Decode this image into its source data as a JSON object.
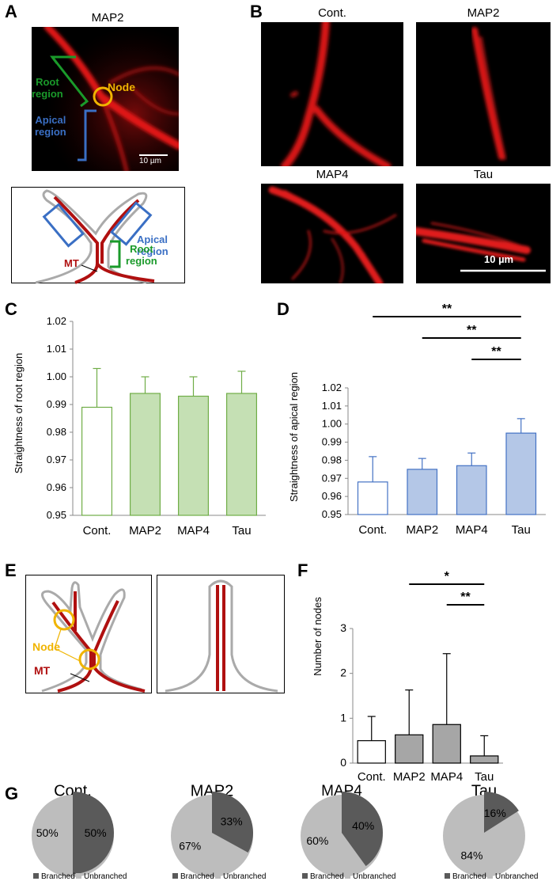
{
  "panels": {
    "a": "A",
    "b": "B",
    "c": "C",
    "d": "D",
    "e": "E",
    "f": "F",
    "g": "G"
  },
  "panel_a": {
    "title": "MAP2",
    "root_label_1": "Root",
    "root_label_2": "region",
    "node_label": "Node",
    "apical_label_1": "Apical",
    "apical_label_2": "region",
    "scale_label": "10 µm",
    "diagram_apical_1": "Apical",
    "diagram_apical_2": "region",
    "diagram_root_1": "Root",
    "diagram_root_2": "region",
    "diagram_mt": "MT"
  },
  "panel_b": {
    "titles": [
      "Cont.",
      "MAP2",
      "MAP4",
      "Tau"
    ],
    "scale_label": "10 µm"
  },
  "panel_e": {
    "node_label": "Node",
    "mt_label": "MT"
  },
  "colors": {
    "root_green": "#1a9a2a",
    "apical_blue": "#3a6fc4",
    "node_yellow": "#f0b400",
    "mt_red": "#b01010",
    "bar_green": "#c5e0b4",
    "bar_green_edge": "#70ad47",
    "bar_blue": "#b4c7e7",
    "bar_blue_edge": "#4472c4",
    "bar_gray": "#a6a6a6",
    "pie_dark": "#5a5a5a",
    "pie_light": "#bdbdbd"
  },
  "chart_data": [
    {
      "id": "C",
      "type": "bar",
      "categories": [
        "Cont.",
        "MAP2",
        "MAP4",
        "Tau"
      ],
      "values": [
        0.989,
        0.994,
        0.993,
        0.994
      ],
      "errors": [
        0.014,
        0.006,
        0.007,
        0.008
      ],
      "ylabel": "Straightness of root region",
      "ylim": [
        0.95,
        1.02
      ],
      "yticks": [
        "0.95",
        "0.96",
        "0.97",
        "0.98",
        "0.99",
        "1.00",
        "1.01",
        "1.02"
      ],
      "significance": []
    },
    {
      "id": "D",
      "type": "bar",
      "categories": [
        "Cont.",
        "MAP2",
        "MAP4",
        "Tau"
      ],
      "values": [
        0.968,
        0.975,
        0.977,
        0.995
      ],
      "errors": [
        0.014,
        0.006,
        0.007,
        0.008
      ],
      "ylabel": "Straightness of apical region",
      "ylim": [
        0.95,
        1.02
      ],
      "yticks": [
        "0.95",
        "0.96",
        "0.97",
        "0.98",
        "0.99",
        "1.00",
        "1.01",
        "1.02"
      ],
      "significance": [
        {
          "from": 0,
          "to": 3,
          "label": "**"
        },
        {
          "from": 1,
          "to": 3,
          "label": "**"
        },
        {
          "from": 2,
          "to": 3,
          "label": "**"
        }
      ]
    },
    {
      "id": "F",
      "type": "bar",
      "categories": [
        "Cont.",
        "MAP2",
        "MAP4",
        "Tau"
      ],
      "values": [
        0.5,
        0.63,
        0.86,
        0.16
      ],
      "errors": [
        0.54,
        1.0,
        1.58,
        0.45
      ],
      "ylabel": "Number of nodes",
      "ylim": [
        0,
        3
      ],
      "yticks": [
        "0",
        "1",
        "2",
        "3"
      ],
      "significance": [
        {
          "from": 1,
          "to": 3,
          "label": "*"
        },
        {
          "from": 2,
          "to": 3,
          "label": "**"
        }
      ]
    },
    {
      "id": "G",
      "type": "pie",
      "legend": [
        "Branched",
        "Unbranched"
      ],
      "pies": [
        {
          "title": "Cont.",
          "branched": 50,
          "unbranched": 50,
          "branched_label": "50%",
          "unbranched_label": "50%"
        },
        {
          "title": "MAP2",
          "branched": 33,
          "unbranched": 67,
          "branched_label": "33%",
          "unbranched_label": "67%"
        },
        {
          "title": "MAP4",
          "branched": 40,
          "unbranched": 60,
          "branched_label": "40%",
          "unbranched_label": "60%"
        },
        {
          "title": "Tau",
          "branched": 16,
          "unbranched": 84,
          "branched_label": "16%",
          "unbranched_label": "84%"
        }
      ]
    }
  ]
}
